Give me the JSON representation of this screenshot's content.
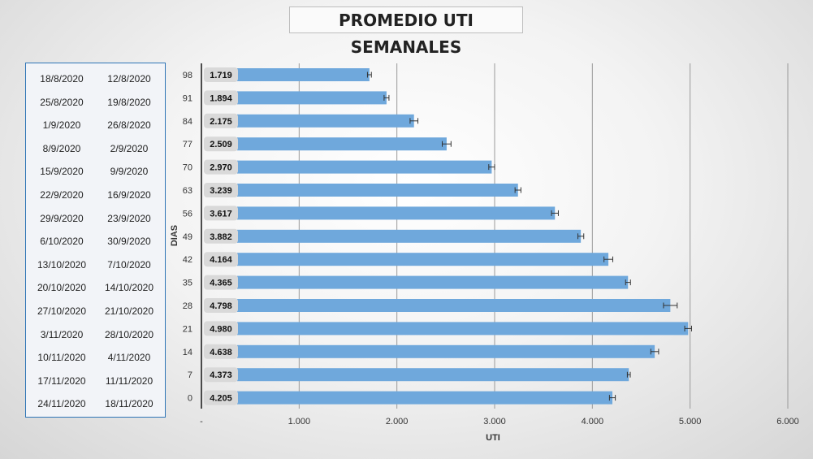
{
  "title": "PROMEDIO UTI SEMANALES",
  "date_table": {
    "rows": [
      {
        "end": "18/8/2020",
        "start": "12/8/2020"
      },
      {
        "end": "25/8/2020",
        "start": "19/8/2020"
      },
      {
        "end": "1/9/2020",
        "start": "26/8/2020"
      },
      {
        "end": "8/9/2020",
        "start": "2/9/2020"
      },
      {
        "end": "15/9/2020",
        "start": "9/9/2020"
      },
      {
        "end": "22/9/2020",
        "start": "16/9/2020"
      },
      {
        "end": "29/9/2020",
        "start": "23/9/2020"
      },
      {
        "end": "6/10/2020",
        "start": "30/9/2020"
      },
      {
        "end": "13/10/2020",
        "start": "7/10/2020"
      },
      {
        "end": "20/10/2020",
        "start": "14/10/2020"
      },
      {
        "end": "27/10/2020",
        "start": "21/10/2020"
      },
      {
        "end": "3/11/2020",
        "start": "28/10/2020"
      },
      {
        "end": "10/11/2020",
        "start": "4/11/2020"
      },
      {
        "end": "17/11/2020",
        "start": "11/11/2020"
      },
      {
        "end": "24/11/2020",
        "start": "18/11/2020"
      }
    ]
  },
  "chart_data": {
    "type": "bar",
    "orientation": "horizontal",
    "title": "PROMEDIO UTI SEMANALES",
    "xlabel": "UTI",
    "ylabel": "DIAS",
    "categories": [
      "98",
      "91",
      "84",
      "77",
      "70",
      "63",
      "56",
      "49",
      "42",
      "35",
      "28",
      "21",
      "14",
      "7",
      "0"
    ],
    "values": [
      1719,
      1894,
      2175,
      2509,
      2970,
      3239,
      3617,
      3882,
      4164,
      4365,
      4798,
      4980,
      4638,
      4373,
      4205
    ],
    "value_labels": [
      "1.719",
      "1.894",
      "2.175",
      "2.509",
      "2.970",
      "3.239",
      "3.617",
      "3.882",
      "4.164",
      "4.365",
      "4.798",
      "4.980",
      "4.638",
      "4.373",
      "4.205"
    ],
    "error": [
      20,
      25,
      40,
      45,
      30,
      30,
      35,
      30,
      45,
      25,
      70,
      35,
      40,
      15,
      30
    ],
    "xlim": [
      0,
      6000
    ],
    "xticks": [
      0,
      1000,
      2000,
      3000,
      4000,
      5000,
      6000
    ],
    "xtick_labels": [
      "-",
      "1.000",
      "2.000",
      "3.000",
      "4.000",
      "5.000",
      "6.000"
    ],
    "grid": "vertical",
    "bar_color": "#6fa8dc",
    "label_bg_color": "#d9d9d9"
  }
}
